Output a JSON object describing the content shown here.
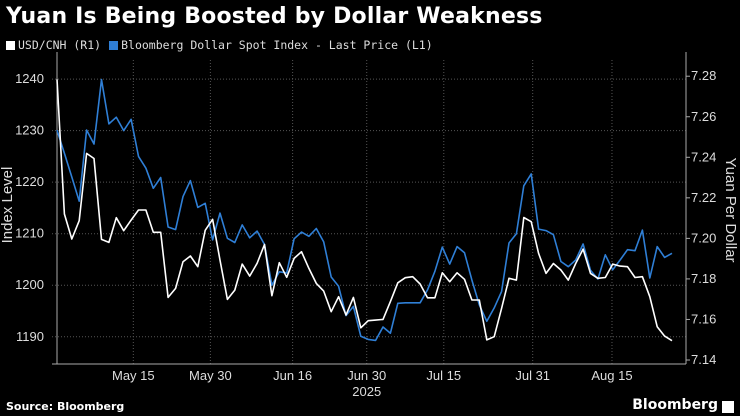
{
  "title": "Yuan Is Being Boosted by Dollar Weakness",
  "source": "Source: Bloomberg",
  "logo": "Bloomberg",
  "colors": {
    "usdcnh": "#ffffff",
    "bbdxy": "#2f7fd6",
    "grid": "#555555",
    "background": "#000000"
  },
  "chart_data": {
    "type": "line",
    "title": "Yuan Is Being Boosted by Dollar Weakness",
    "xlabel": "2025",
    "legend_placement": "top-left",
    "grid": true,
    "x_ticks": [
      {
        "label": "May 15",
        "index": 10.3
      },
      {
        "label": "May 30",
        "index": 20.7
      },
      {
        "label": "Jun 16",
        "index": 31.8
      },
      {
        "label": "Jun 30",
        "index": 41.8
      },
      {
        "label": "Jul 15",
        "index": 52.2
      },
      {
        "label": "Jul 31",
        "index": 64.2
      },
      {
        "label": "Aug 15",
        "index": 74.9
      }
    ],
    "year_label": {
      "label": "2025",
      "index": 41.8
    },
    "left_axis": {
      "label": "Index Level",
      "ylim": [
        1185.3,
        1243.7
      ],
      "ticks": [
        "1190",
        "1200",
        "1210",
        "1220",
        "1230",
        "1240"
      ]
    },
    "right_axis": {
      "label": "Yuan Per Dollar",
      "ylim": [
        7.1395,
        7.288
      ],
      "ticks": [
        "7.14",
        "7.16",
        "7.18",
        "7.20",
        "7.22",
        "7.24",
        "7.26",
        "7.28"
      ]
    },
    "series": [
      {
        "name": "USD/CNH (R1)",
        "axis": "right",
        "values": [
          7.2785,
          7.212,
          7.1997,
          7.2087,
          7.2419,
          7.2394,
          7.1995,
          7.198,
          7.2102,
          7.2038,
          7.209,
          7.214,
          7.214,
          7.203,
          7.203,
          7.1709,
          7.1753,
          7.1885,
          7.1913,
          7.186,
          7.204,
          7.2094,
          7.1893,
          7.1699,
          7.1745,
          7.1873,
          7.1814,
          7.1877,
          7.197,
          7.1717,
          7.188,
          7.1808,
          7.1901,
          7.1934,
          7.1852,
          7.1778,
          7.174,
          7.1638,
          7.1712,
          7.1622,
          7.1709,
          7.1559,
          7.1594,
          7.1597,
          7.16,
          7.1688,
          7.1781,
          7.1806,
          7.1811,
          7.1775,
          7.1707,
          7.1707,
          7.183,
          7.1786,
          7.183,
          7.1798,
          7.1696,
          7.1696,
          7.1499,
          7.1515,
          7.1655,
          7.1803,
          7.1794,
          7.2103,
          7.2082,
          7.1926,
          7.1827,
          7.1876,
          7.1844,
          7.1794,
          7.1876,
          7.1947,
          7.1827,
          7.1803,
          7.1807,
          7.1873,
          7.1863,
          7.186,
          7.1807,
          7.1811,
          7.1712,
          7.1564,
          7.1518,
          7.1495
        ]
      },
      {
        "name": "Bloomberg Dollar Spot Index - Last Price (L1)",
        "axis": "left",
        "values": [
          1230.1,
          1225.6,
          1221.0,
          1216.3,
          1230.1,
          1227.4,
          1239.9,
          1231.3,
          1232.6,
          1230.0,
          1232.2,
          1225.0,
          1222.7,
          1218.8,
          1220.9,
          1211.3,
          1210.8,
          1217.2,
          1220.3,
          1215.1,
          1215.9,
          1208.8,
          1214.0,
          1209.1,
          1208.3,
          1211.7,
          1209.2,
          1210.5,
          1207.9,
          1200.0,
          1202.6,
          1202.4,
          1209.0,
          1210.3,
          1209.5,
          1211.0,
          1208.4,
          1201.6,
          1199.8,
          1194.1,
          1195.9,
          1190.1,
          1189.5,
          1189.3,
          1191.9,
          1190.7,
          1196.5,
          1196.6,
          1196.6,
          1196.6,
          1199.1,
          1202.7,
          1207.4,
          1204.1,
          1207.5,
          1206.3,
          1201.0,
          1196.2,
          1193.0,
          1195.6,
          1198.8,
          1208.2,
          1210.0,
          1219.3,
          1221.6,
          1210.9,
          1210.6,
          1209.8,
          1204.6,
          1203.6,
          1204.9,
          1208.0,
          1202.9,
          1201.2,
          1205.9,
          1203.0,
          1204.9,
          1206.9,
          1206.7,
          1210.7,
          1201.4,
          1207.5,
          1205.4,
          1206.2
        ]
      }
    ]
  }
}
